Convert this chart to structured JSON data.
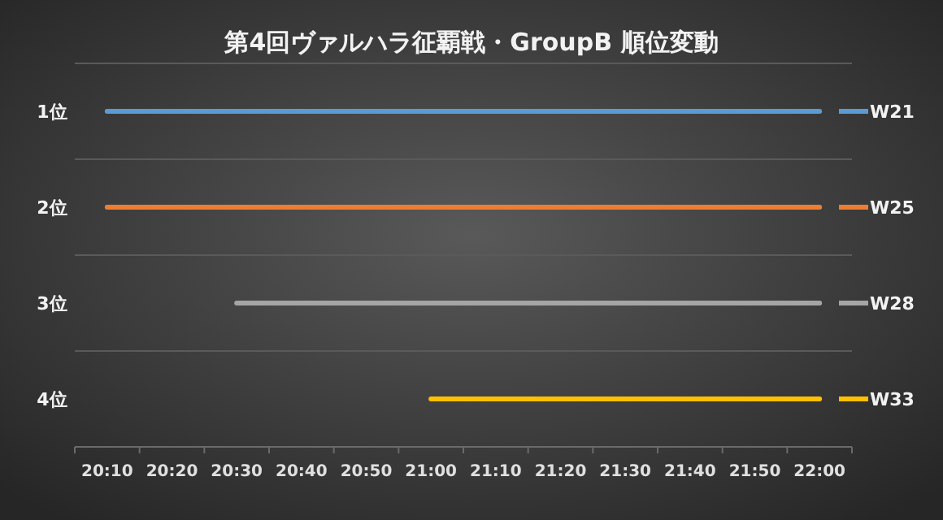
{
  "chart_data": {
    "type": "line",
    "title": "第4回ヴァルハラ征覇戦・GroupB 順位変動",
    "categories": [
      "20:10",
      "20:20",
      "20:30",
      "20:40",
      "20:50",
      "21:00",
      "21:10",
      "21:20",
      "21:30",
      "21:40",
      "21:50",
      "22:00"
    ],
    "ylim": [
      4.5,
      0.5
    ],
    "yticks": [
      {
        "value": 0.5,
        "label": null
      },
      {
        "value": 1,
        "label": "1位"
      },
      {
        "value": 1.5,
        "label": null
      },
      {
        "value": 2,
        "label": "2位"
      },
      {
        "value": 2.5,
        "label": null
      },
      {
        "value": 3,
        "label": "3位"
      },
      {
        "value": 3.5,
        "label": null
      },
      {
        "value": 4,
        "label": "4位"
      },
      {
        "value": 4.5,
        "label": null
      }
    ],
    "grid": "y",
    "legend": "right",
    "series": [
      {
        "name": "W21",
        "color": "#5b9bd5",
        "values": [
          1,
          1,
          1,
          1,
          1,
          1,
          1,
          1,
          1,
          1,
          1,
          1
        ]
      },
      {
        "name": "W25",
        "color": "#ed7d31",
        "values": [
          2,
          2,
          2,
          2,
          2,
          2,
          2,
          2,
          2,
          2,
          2,
          2
        ]
      },
      {
        "name": "W28",
        "color": "#a5a5a5",
        "values": [
          null,
          null,
          3,
          3,
          3,
          3,
          3,
          3,
          3,
          3,
          3,
          3
        ]
      },
      {
        "name": "W33",
        "color": "#ffc000",
        "values": [
          null,
          null,
          null,
          null,
          null,
          4,
          4,
          4,
          4,
          4,
          4,
          4
        ]
      }
    ]
  }
}
